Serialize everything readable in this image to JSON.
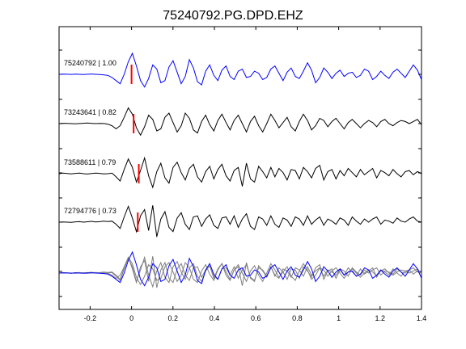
{
  "chart_data": {
    "type": "line",
    "title": "75240792.PG.DPD.EHZ",
    "xlabel": "",
    "ylabel": "",
    "xlim": [
      -0.35,
      1.4
    ],
    "x_ticks": [
      -0.2,
      0,
      0.2,
      0.4,
      0.6,
      0.8,
      1,
      1.2,
      1.4
    ],
    "x_tick_labels": [
      "-0.2",
      "0",
      "0.2",
      "0.4",
      "0.6",
      "0.8",
      "1",
      "1.2",
      "1.4"
    ],
    "grid": false,
    "pick_time": 0,
    "colors": {
      "reference": "#0000ff",
      "trace": "#000000",
      "overlay": "#808080",
      "pick": "#ff0000"
    },
    "traces": [
      {
        "label": "75240792 | 1.00",
        "id": "75240792",
        "cc": 1.0,
        "pick_x": 0.0,
        "color": "#0000ff",
        "y": [
          0,
          0.02,
          0.01,
          -0.01,
          0.02,
          0.0,
          -0.02,
          0.01,
          0.03,
          0.0,
          -0.02,
          -0.05,
          -0.1,
          -0.3,
          -0.6,
          -0.9,
          0.0,
          1.2,
          2.0,
          0.8,
          -0.6,
          -1.2,
          -0.4,
          0.9,
          0.5,
          -0.8,
          -0.6,
          0.7,
          1.3,
          0.2,
          -0.9,
          -0.2,
          1.4,
          0.6,
          -0.7,
          -1.0,
          0.3,
          0.9,
          -0.1,
          -0.6,
          0.4,
          0.8,
          -0.2,
          -0.5,
          0.3,
          0.5,
          -0.3,
          -0.2,
          0.3,
          0.1,
          -0.5,
          -0.3,
          0.5,
          0.8,
          0.1,
          -0.6,
          0.2,
          0.6,
          -0.2,
          -0.4,
          0.3,
          1.1,
          0.4,
          -0.8,
          -0.3,
          0.6,
          0.2,
          -0.4,
          0.1,
          0.4,
          -0.2,
          0.1,
          0.2,
          -0.3,
          -0.1,
          0.5,
          0.3,
          -0.5,
          -0.2,
          0.3,
          -0.1,
          -0.4,
          0.2,
          0.5,
          0.1,
          -0.3,
          0.3,
          0.9,
          0.4,
          -0.5
        ]
      },
      {
        "label": "73243641 | 0.82",
        "id": "73243641",
        "cc": 0.82,
        "pick_x": 0.01,
        "color": "#000000",
        "y": [
          0,
          0.03,
          0.02,
          0.0,
          -0.02,
          0.01,
          0.03,
          0.05,
          0.02,
          0.0,
          0.02,
          0.01,
          -0.05,
          -0.2,
          -0.5,
          -0.2,
          0.6,
          1.5,
          0.9,
          -0.4,
          -1.1,
          -0.3,
          0.8,
          0.4,
          -0.7,
          -0.5,
          0.6,
          1.0,
          0.1,
          -0.8,
          -0.2,
          1.0,
          0.5,
          -0.6,
          -0.9,
          0.2,
          0.8,
          -0.1,
          -0.7,
          0.3,
          0.9,
          0.1,
          -0.6,
          0.3,
          0.8,
          0.0,
          -0.8,
          0.2,
          0.7,
          -0.2,
          -0.8,
          0.0,
          0.9,
          0.3,
          -0.4,
          0.1,
          0.6,
          -0.3,
          -0.7,
          0.2,
          0.9,
          0.3,
          -0.6,
          -0.2,
          0.5,
          0.3,
          -0.3,
          0.2,
          0.5,
          0.0,
          -0.5,
          0.1,
          0.4,
          0.0,
          -0.4,
          0.0,
          0.3,
          0.1,
          -0.3,
          0.2,
          0.4,
          0.0,
          -0.2,
          0.1,
          0.3,
          0.2,
          0.0,
          0.2,
          0.4,
          -0.1
        ]
      },
      {
        "label": "73588611 | 0.79",
        "id": "73588611",
        "cc": 0.79,
        "pick_x": 0.035,
        "color": "#000000",
        "y": [
          0,
          0.05,
          0.02,
          -0.02,
          0.03,
          0.05,
          0.0,
          -0.03,
          0.02,
          0.06,
          0.03,
          -0.02,
          0.0,
          0.05,
          -0.3,
          -0.7,
          0.4,
          1.4,
          0.6,
          -0.8,
          0.3,
          1.5,
          -0.2,
          -1.3,
          0.2,
          1.0,
          -0.4,
          -0.9,
          0.6,
          1.1,
          0.1,
          -0.6,
          0.5,
          0.9,
          -0.3,
          -0.8,
          0.2,
          0.7,
          -0.5,
          0.4,
          0.9,
          -0.2,
          -0.7,
          0.3,
          0.6,
          -1.2,
          1.0,
          -0.5,
          -0.8,
          0.7,
          0.2,
          -0.4,
          0.6,
          -0.3,
          0.5,
          0.1,
          -0.6,
          0.4,
          0.3,
          -0.5,
          0.6,
          0.2,
          -0.4,
          0.5,
          0.8,
          -0.6,
          0.2,
          0.4,
          -0.5,
          0.3,
          -0.2,
          0.5,
          0.1,
          -0.3,
          0.4,
          -0.1,
          0.2,
          0.5,
          -0.4,
          0.3,
          0.1,
          -0.2,
          0.4,
          0.0,
          -0.3,
          0.2,
          0.3,
          -0.1,
          0.2,
          0.0
        ]
      },
      {
        "label": "72794776 | 0.73",
        "id": "72794776",
        "cc": 0.73,
        "pick_x": 0.03,
        "color": "#000000",
        "y": [
          0,
          0.02,
          0.0,
          -0.02,
          0.03,
          0.05,
          0.0,
          0.04,
          0.08,
          0.02,
          0.05,
          0.1,
          0.06,
          0.1,
          -0.2,
          -0.6,
          0.5,
          1.5,
          0.4,
          -0.9,
          0.6,
          1.2,
          -0.8,
          1.6,
          -1.4,
          0.3,
          1.0,
          -0.5,
          -0.9,
          0.4,
          0.9,
          -0.2,
          -0.7,
          0.5,
          0.6,
          -0.4,
          0.3,
          0.7,
          -0.3,
          -0.6,
          0.4,
          0.5,
          -0.2,
          0.6,
          -0.5,
          0.3,
          0.8,
          -0.4,
          -0.7,
          0.5,
          0.3,
          -0.3,
          0.6,
          -0.2,
          -0.5,
          0.4,
          0.2,
          -0.4,
          0.5,
          0.3,
          -0.3,
          0.6,
          -0.2,
          0.2,
          0.5,
          -0.3,
          0.3,
          0.1,
          -0.2,
          0.4,
          0.2,
          -0.3,
          0.5,
          0.1,
          -0.2,
          0.3,
          0.0,
          0.3,
          0.5,
          -0.2,
          0.2,
          0.1,
          -0.1,
          0.4,
          0.1,
          0.0,
          0.3,
          0.5,
          0.1,
          0.0
        ]
      }
    ]
  }
}
